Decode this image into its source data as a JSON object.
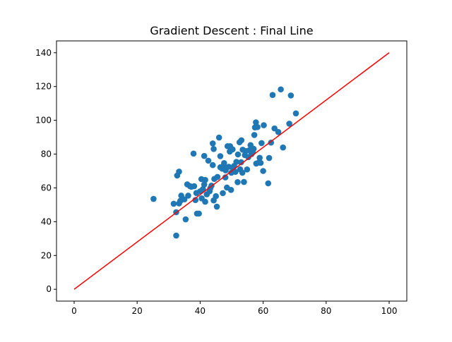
{
  "chart_data": {
    "type": "scatter",
    "title": "Gradient Descent : Final Line",
    "xlabel": "",
    "ylabel": "",
    "xlim": [
      -5.6,
      105.6
    ],
    "ylim": [
      -7.0,
      147.0
    ],
    "x_ticks": [
      0,
      20,
      40,
      60,
      80,
      100
    ],
    "y_ticks": [
      0,
      20,
      40,
      60,
      80,
      100,
      120,
      140
    ],
    "grid": false,
    "legend": "none",
    "colors": {
      "points": "#1f77b4",
      "line": "#ff0000",
      "axes": "#000000"
    },
    "series": [
      {
        "kind": "scatter",
        "points": [
          [
            25.2,
            53.5
          ],
          [
            31.6,
            50.6
          ],
          [
            32.4,
            31.8
          ],
          [
            32.4,
            45.6
          ],
          [
            32.7,
            67.3
          ],
          [
            33.3,
            69.6
          ],
          [
            33.3,
            50.8
          ],
          [
            33.7,
            52.3
          ],
          [
            34.0,
            55.4
          ],
          [
            35.0,
            53.2
          ],
          [
            35.4,
            41.4
          ],
          [
            35.9,
            62.1
          ],
          [
            36.2,
            55.4
          ],
          [
            36.8,
            61.0
          ],
          [
            37.2,
            60.7
          ],
          [
            37.9,
            80.3
          ],
          [
            38.1,
            61.0
          ],
          [
            38.5,
            52.8
          ],
          [
            38.8,
            57.0
          ],
          [
            39.0,
            44.8
          ],
          [
            39.6,
            44.8
          ],
          [
            40.0,
            58.0
          ],
          [
            40.4,
            65.2
          ],
          [
            40.5,
            53.8
          ],
          [
            40.9,
            59.3
          ],
          [
            41.3,
            62.0
          ],
          [
            41.3,
            78.9
          ],
          [
            41.6,
            51.8
          ],
          [
            41.6,
            64.7
          ],
          [
            42.1,
            56.2
          ],
          [
            42.6,
            76.1
          ],
          [
            43.0,
            58.0
          ],
          [
            43.2,
            59.7
          ],
          [
            43.6,
            61.3
          ],
          [
            44.0,
            73.5
          ],
          [
            44.0,
            86.3
          ],
          [
            44.3,
            83.0
          ],
          [
            44.3,
            52.6
          ],
          [
            44.5,
            65.3
          ],
          [
            45.0,
            55.1
          ],
          [
            45.3,
            48.9
          ],
          [
            45.5,
            66.5
          ],
          [
            46.0,
            89.8
          ],
          [
            46.4,
            72.2
          ],
          [
            46.4,
            78.8
          ],
          [
            47.0,
            71.4
          ],
          [
            47.2,
            56.9
          ],
          [
            47.4,
            72.9
          ],
          [
            47.6,
            74.7
          ],
          [
            48.0,
            66.2
          ],
          [
            48.1,
            70.4
          ],
          [
            48.5,
            60.2
          ],
          [
            48.7,
            84.7
          ],
          [
            49.1,
            72.5
          ],
          [
            49.4,
            81.5
          ],
          [
            49.5,
            84.7
          ],
          [
            49.8,
            58.8
          ],
          [
            49.9,
            69.0
          ],
          [
            50.3,
            82.8
          ],
          [
            50.5,
            71.4
          ],
          [
            50.8,
            73.0
          ],
          [
            51.2,
            69.5
          ],
          [
            51.5,
            75.4
          ],
          [
            51.9,
            63.4
          ],
          [
            52.0,
            79.8
          ],
          [
            52.5,
            87.0
          ],
          [
            52.7,
            71.0
          ],
          [
            53.0,
            75.2
          ],
          [
            53.1,
            88.2
          ],
          [
            53.4,
            69.0
          ],
          [
            53.5,
            82.6
          ],
          [
            53.9,
            63.5
          ],
          [
            54.2,
            79.4
          ],
          [
            54.5,
            81.8
          ],
          [
            54.9,
            70.9
          ],
          [
            55.3,
            78.2
          ],
          [
            55.6,
            82.3
          ],
          [
            56.0,
            85.3
          ],
          [
            56.3,
            80.0
          ],
          [
            56.7,
            81.0
          ],
          [
            57.0,
            83.1
          ],
          [
            57.2,
            91.3
          ],
          [
            57.4,
            95.8
          ],
          [
            57.7,
            98.8
          ],
          [
            57.8,
            74.4
          ],
          [
            58.2,
            96.0
          ],
          [
            58.6,
            75.0
          ],
          [
            58.9,
            77.8
          ],
          [
            59.2,
            74.8
          ],
          [
            59.5,
            86.5
          ],
          [
            60.0,
            70.0
          ],
          [
            60.2,
            97.1
          ],
          [
            61.6,
            62.7
          ],
          [
            61.9,
            77.7
          ],
          [
            62.5,
            86.8
          ],
          [
            63.0,
            115.0
          ],
          [
            63.6,
            95.2
          ],
          [
            64.8,
            93.1
          ],
          [
            65.6,
            118.3
          ],
          [
            66.3,
            83.9
          ],
          [
            68.3,
            98.0
          ],
          [
            68.8,
            114.7
          ],
          [
            70.4,
            104.1
          ]
        ]
      },
      {
        "kind": "line",
        "points": [
          [
            0,
            0
          ],
          [
            100,
            140.0
          ]
        ]
      }
    ]
  }
}
